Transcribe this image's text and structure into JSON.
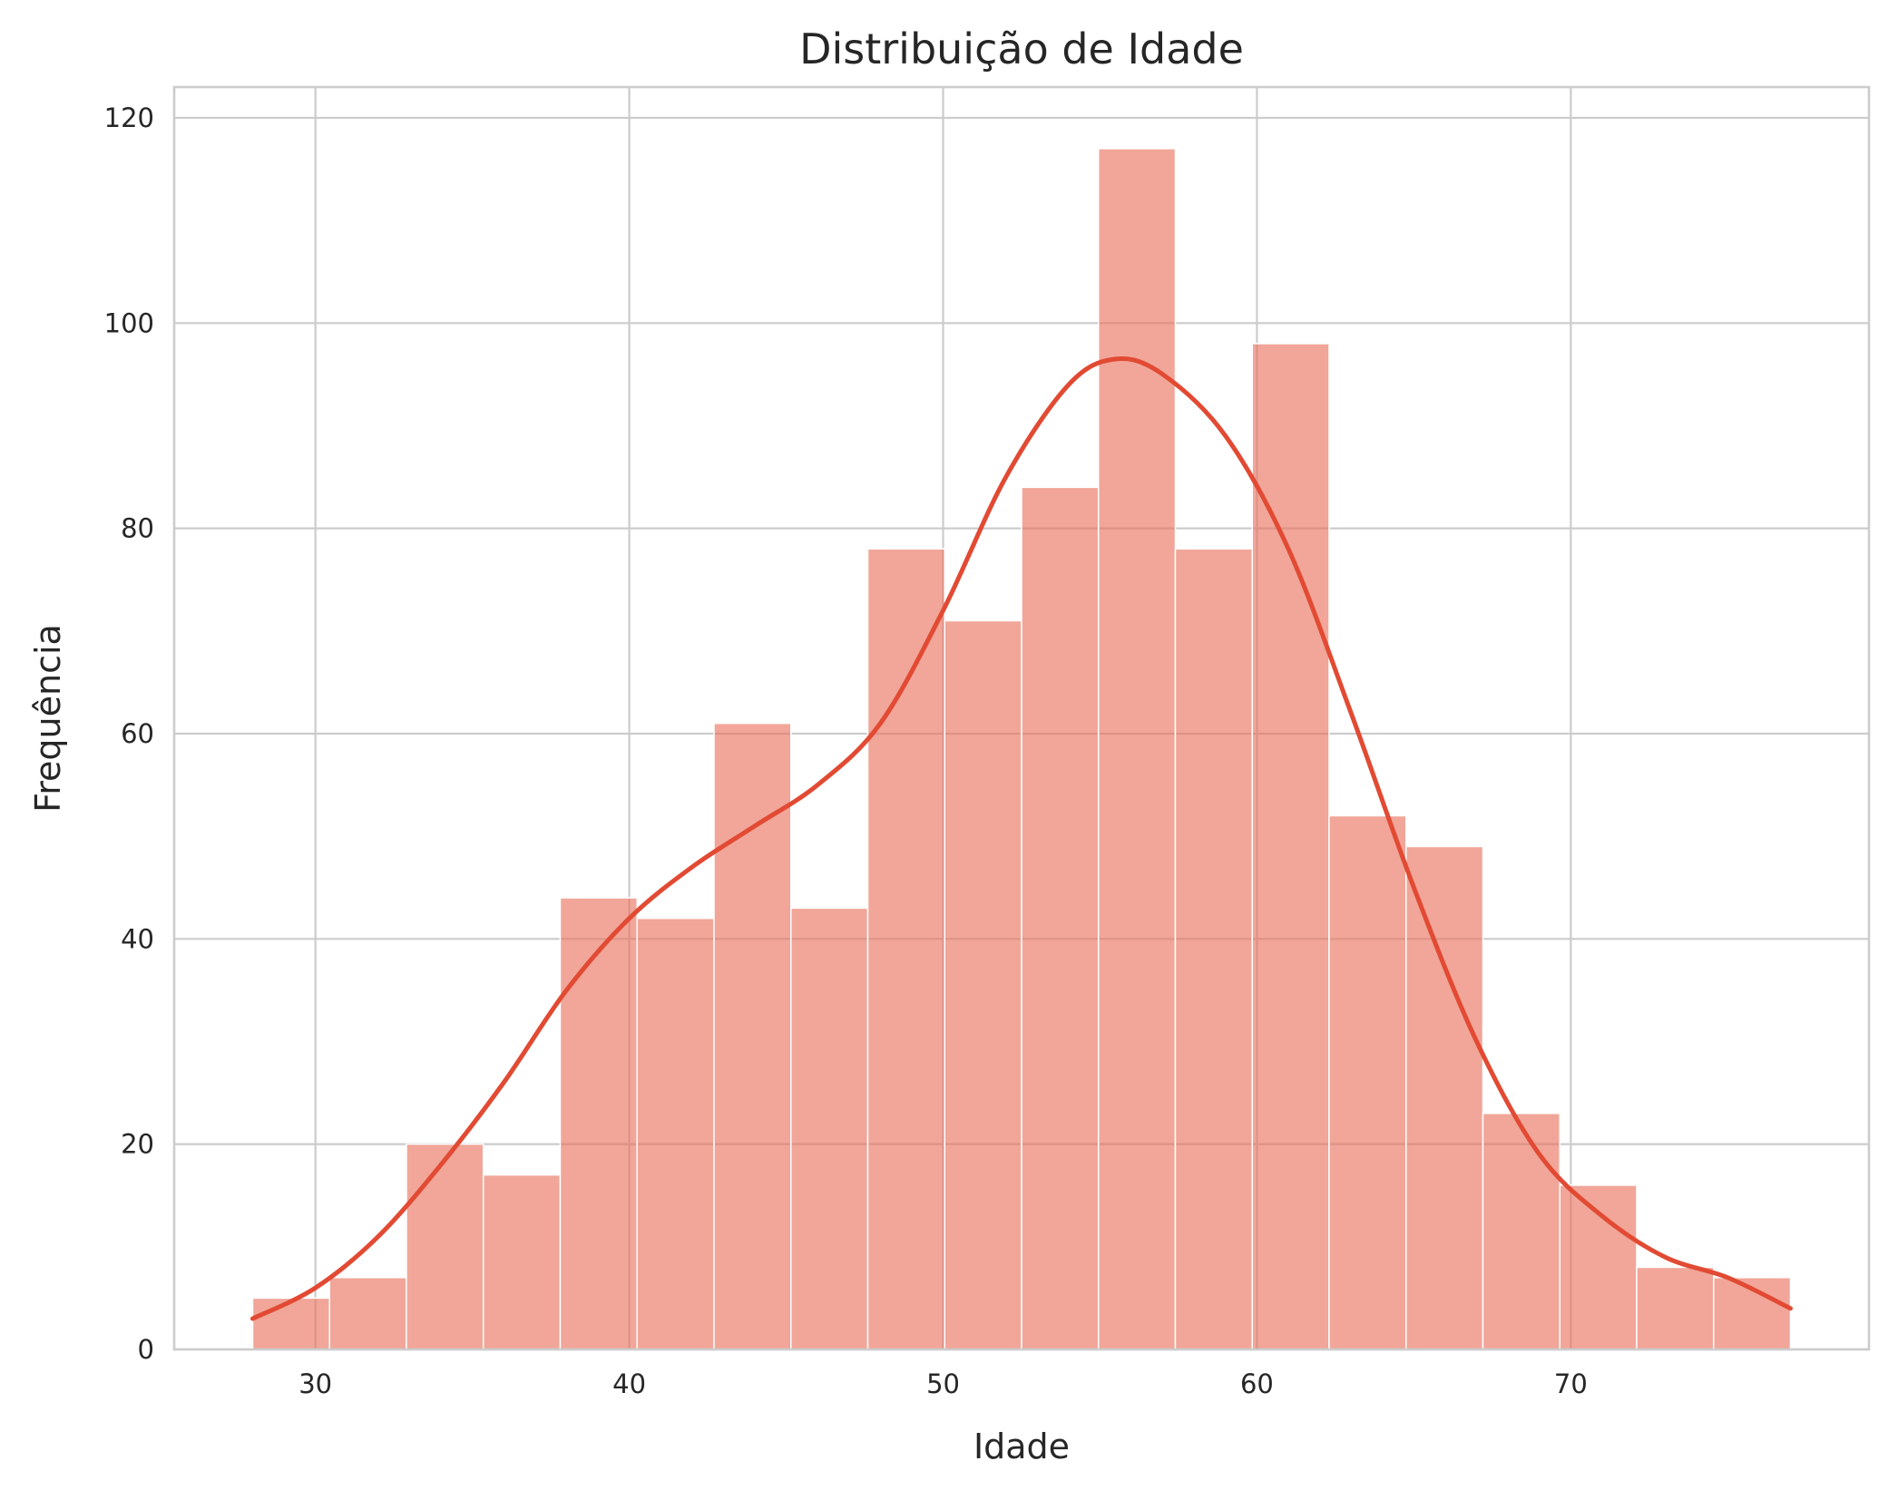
{
  "chart_data": {
    "type": "bar",
    "title": "Distribuição de Idade",
    "xlabel": "Idade",
    "ylabel": "Frequência",
    "xlim": [
      25.5,
      79.5
    ],
    "ylim": [
      0,
      123
    ],
    "xticks": [
      30,
      40,
      50,
      60,
      70
    ],
    "yticks": [
      0,
      20,
      40,
      60,
      80,
      100,
      120
    ],
    "grid": true,
    "colors": {
      "bars": "#e8705a",
      "kde": "#e24a33",
      "grid": "#cccccc"
    },
    "bins": [
      {
        "x0": 28.0,
        "x1": 30.45,
        "count": 5
      },
      {
        "x0": 30.45,
        "x1": 32.9,
        "count": 7
      },
      {
        "x0": 32.9,
        "x1": 35.35,
        "count": 20
      },
      {
        "x0": 35.35,
        "x1": 37.8,
        "count": 17
      },
      {
        "x0": 37.8,
        "x1": 40.25,
        "count": 44
      },
      {
        "x0": 40.25,
        "x1": 42.7,
        "count": 42
      },
      {
        "x0": 42.7,
        "x1": 45.15,
        "count": 61
      },
      {
        "x0": 45.15,
        "x1": 47.6,
        "count": 43
      },
      {
        "x0": 47.6,
        "x1": 50.05,
        "count": 78
      },
      {
        "x0": 50.05,
        "x1": 52.5,
        "count": 71
      },
      {
        "x0": 52.5,
        "x1": 54.95,
        "count": 84
      },
      {
        "x0": 54.95,
        "x1": 57.4,
        "count": 117
      },
      {
        "x0": 57.4,
        "x1": 59.85,
        "count": 78
      },
      {
        "x0": 59.85,
        "x1": 62.3,
        "count": 98
      },
      {
        "x0": 62.3,
        "x1": 64.75,
        "count": 52
      },
      {
        "x0": 64.75,
        "x1": 67.2,
        "count": 49
      },
      {
        "x0": 67.2,
        "x1": 69.65,
        "count": 23
      },
      {
        "x0": 69.65,
        "x1": 72.1,
        "count": 16
      },
      {
        "x0": 72.1,
        "x1": 74.55,
        "count": 8
      },
      {
        "x0": 74.55,
        "x1": 77.0,
        "count": 7
      }
    ],
    "kde": {
      "x": [
        28,
        30,
        32,
        34,
        36,
        38,
        40,
        42,
        44,
        46,
        48,
        50,
        52,
        54,
        55.5,
        57,
        59,
        61,
        63,
        65,
        67,
        69,
        71,
        73,
        75,
        77
      ],
      "y": [
        3,
        6,
        11,
        18,
        26,
        35,
        42,
        47,
        51,
        55,
        61,
        72,
        85,
        94,
        96.5,
        95,
        89,
        78,
        62,
        45,
        30,
        19,
        13,
        9,
        7,
        4
      ]
    }
  }
}
